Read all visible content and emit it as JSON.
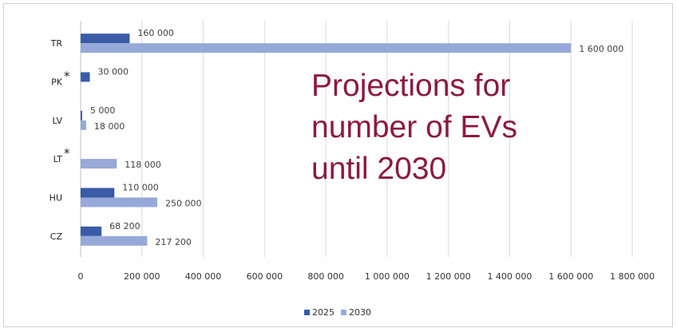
{
  "title_lines": [
    "Projections for",
    "number of EVs",
    "until 2030"
  ],
  "colors": {
    "2025": "#3a5ba6",
    "2030": "#96a9d8",
    "title": "#8b1a3f"
  },
  "chart_data": {
    "type": "bar",
    "orientation": "horizontal",
    "categories": [
      "TR",
      "PK",
      "LV",
      "LT",
      "HU",
      "CZ"
    ],
    "category_markers": {
      "PK": "*",
      "LT": "*"
    },
    "series": [
      {
        "name": "2025",
        "values": [
          160000,
          30000,
          5000,
          null,
          110000,
          68200
        ],
        "labels": [
          "160 000",
          "30 000",
          "5 000",
          "",
          "110 000",
          "68 200"
        ]
      },
      {
        "name": "2030",
        "values": [
          1600000,
          null,
          18000,
          118000,
          250000,
          217200
        ],
        "labels": [
          "1 600 000",
          "",
          "18 000",
          "118 000",
          "250 000",
          "217 200"
        ]
      }
    ],
    "xlim": [
      0,
      1800000
    ],
    "xticks": [
      0,
      200000,
      400000,
      600000,
      800000,
      1000000,
      1200000,
      1400000,
      1600000,
      1800000
    ],
    "xtick_labels": [
      "0",
      "200 000",
      "400 000",
      "600 000",
      "800 000",
      "1 000 000",
      "1 200 000",
      "1 400 000",
      "1 600 000",
      "1 800 000"
    ],
    "grid": "vertical",
    "legend_position": "bottom"
  }
}
